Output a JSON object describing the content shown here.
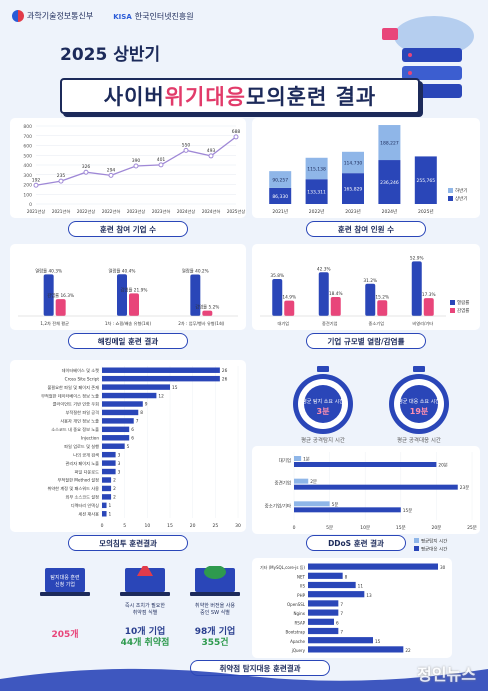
{
  "header": {
    "logo1": "과학기술정보통신부",
    "logo2_prefix": "KISA",
    "logo2": "한국인터넷진흥원",
    "subtitle": "2025 상반기",
    "title_parts": [
      "사이버 ",
      "위기",
      " ",
      "대응",
      " 모의훈련 결과"
    ]
  },
  "colors": {
    "navy": "#1c2a5a",
    "blue": "#2a46b8",
    "light_blue": "#8fb6e8",
    "pink": "#e8457a",
    "purple": "#9f88d6"
  },
  "chart_data": [
    {
      "id": "companies",
      "type": "line",
      "title": "훈련 참여 기업 수",
      "categories": [
        "2021년상",
        "2021년하",
        "2022년상",
        "2022년하",
        "2023년상",
        "2023년하",
        "2024년상",
        "2024년하",
        "2025년상"
      ],
      "values": [
        192,
        235,
        326,
        294,
        390,
        401,
        550,
        493,
        688
      ],
      "ylim": [
        0,
        800
      ],
      "yticks": [
        0,
        100,
        200,
        300,
        400,
        500,
        600,
        700,
        800
      ]
    },
    {
      "id": "participants",
      "type": "bar",
      "title": "훈련 참여 인원 수",
      "categories": [
        "2021년",
        "2022년",
        "2023년",
        "2024년",
        "2025년"
      ],
      "series": [
        {
          "name": "하반기",
          "values": [
            90257,
            115138,
            114730,
            188227,
            null
          ]
        },
        {
          "name": "상반기",
          "values": [
            86330,
            133311,
            165829,
            236246,
            255765
          ]
        }
      ],
      "labels": {
        "하반기": [
          "90,257",
          "115,138",
          "114,730",
          "188,227",
          ""
        ],
        "상반기": [
          "86,330",
          "133,311",
          "165,829",
          "236,246",
          "255,765"
        ]
      },
      "legend": [
        "하반기",
        "상반기"
      ]
    },
    {
      "id": "hacking-mail",
      "type": "bar",
      "title": "해킹메일 훈련 결과",
      "categories": [
        "1,2차 전체 평균",
        "1차 : 쇼핑/배송 유형(1회)",
        "2차 : 업무/행사 유형(1회)"
      ],
      "series": [
        {
          "name": "열람률",
          "values": [
            40.3,
            40.4,
            40.2
          ]
        },
        {
          "name": "감염률",
          "values": [
            16.3,
            21.9,
            5.2
          ]
        }
      ],
      "labels": {
        "열람률": [
          "열람률 40.3%",
          "열람률 40.4%",
          "열람률 40.2%"
        ],
        "감염률": [
          "감염률 16.3%",
          "감염률 21.9%",
          "감염률 5.2%"
        ]
      }
    },
    {
      "id": "company-size",
      "type": "bar",
      "title": "기업 규모별 열람/감염률",
      "categories": [
        "대기업",
        "중견기업",
        "중소기업",
        "비영리/기타"
      ],
      "series": [
        {
          "name": "열람률",
          "values": [
            35.8,
            42.3,
            31.2,
            52.9
          ]
        },
        {
          "name": "감염률",
          "values": [
            14.9,
            18.4,
            15.2,
            17.3
          ]
        }
      ],
      "labels": {
        "열람률": [
          "35.8%",
          "42.3%",
          "31.2%",
          "52.9%"
        ],
        "감염률": [
          "14.9%",
          "18.4%",
          "15.2%",
          "17.3%"
        ]
      },
      "legend": [
        "열람률",
        "감염률"
      ]
    },
    {
      "id": "simulated-hacking",
      "type": "bar",
      "orientation": "horizontal",
      "title": "모의침투 훈련결과",
      "categories": [
        "데이터베이스 및 소켓",
        "Cross Site Script",
        "불필요한 파일 및 페이지 존재",
        "부적절한 데이터베이스 정보 노출",
        "클라이언트 기반 인증 우회",
        "부적절한 파일 공격",
        "사용자 개인 정보 노출",
        "소스코드 내 중요 정보 노출",
        "Injection",
        "파일 업로드 및 실행",
        "나의 공개 검색",
        "관리자 페이지 노출",
        "파일 다운로드",
        "부적절한 Method 설정",
        "취약한 계정 및 패스워드 사용",
        "외부 소스코드 설정",
        "디렉터리 인덱싱",
        "세션 재사용"
      ],
      "values": [
        26,
        26,
        15,
        12,
        9,
        8,
        7,
        6,
        6,
        5,
        3,
        3,
        3,
        2,
        2,
        2,
        1,
        1
      ],
      "xlim": [
        0,
        30
      ],
      "xticks": [
        0,
        5,
        10,
        15,
        20,
        25,
        30
      ]
    },
    {
      "id": "ddos",
      "type": "bar",
      "orientation": "horizontal",
      "title": "DDoS 훈련 결과",
      "categories": [
        "대기업",
        "중견기업",
        "중소기업/기타"
      ],
      "series": [
        {
          "name": "평균탐지 시간",
          "values": [
            1,
            2,
            5
          ]
        },
        {
          "name": "평균대응 시간",
          "values": [
            20,
            23,
            15
          ]
        }
      ],
      "labels": {
        "평균탐지 시간": [
          "1분",
          "2분",
          "5분"
        ],
        "평균대응 시간": [
          "20분",
          "23분",
          "15분"
        ]
      },
      "xlim": [
        0,
        25
      ],
      "xticks": [
        "0",
        "5분",
        "10분",
        "15분",
        "20분",
        "25분"
      ],
      "legend": [
        "평균탐지 시간",
        "평균대응 시간"
      ]
    },
    {
      "id": "vulnerability",
      "type": "bar",
      "orientation": "horizontal",
      "title": "취약점 탐지대응 훈련결과",
      "categories": [
        "기타 (MySQL,core-js 등)",
        "NET",
        "IIS",
        "PHP",
        "OpenSSL",
        "Nginx",
        "RSAP",
        "Bootstrap",
        "Apache",
        "jQuery"
      ],
      "values": [
        30,
        8,
        11,
        13,
        7,
        7,
        6,
        7,
        15,
        22
      ],
      "xlim": [
        0,
        30
      ]
    }
  ],
  "clocks": [
    {
      "title": "평균 탐지 소요 시간",
      "value": "3분",
      "label": "평균 공격탐지 시간"
    },
    {
      "title": "평균 대응 소요 시간",
      "value": "19분",
      "label": "평균 공격대응 시간"
    }
  ],
  "vuln_summary": [
    {
      "line1": "탐지대응 훈련",
      "line2": "신청 기업",
      "big": "205개"
    },
    {
      "line1": "즉시 조치가 필요한",
      "line2": "취약점 식별",
      "big_a": "10개 기업",
      "big_b": "44개 취약점"
    },
    {
      "line1": "취약한 버전을 사용",
      "line2": "중인 SW 식별",
      "big_a": "98개 기업",
      "big_b": "355건"
    }
  ],
  "watermark": "정인뉴스"
}
